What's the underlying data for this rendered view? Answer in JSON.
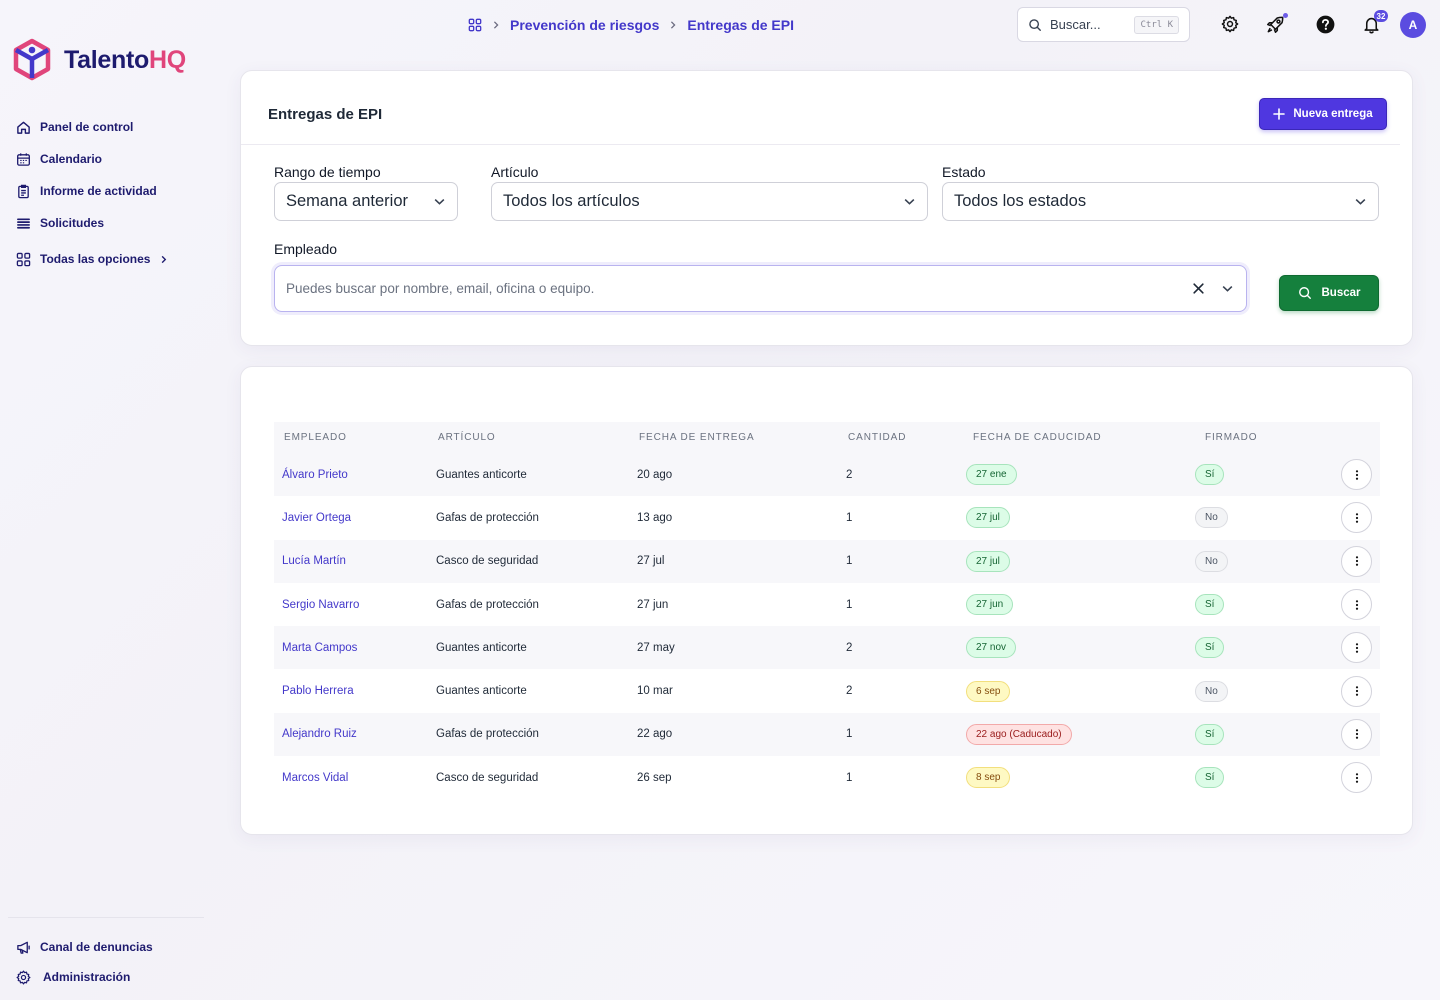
{
  "app": {
    "logo_main": "Talento",
    "logo_accent": "HQ"
  },
  "sidebar": {
    "items": [
      {
        "label": "Panel de control",
        "icon": "home-icon"
      },
      {
        "label": "Calendario",
        "icon": "calendar-icon"
      },
      {
        "label": "Informe de actividad",
        "icon": "report-icon"
      },
      {
        "label": "Solicitudes",
        "icon": "list-icon"
      }
    ],
    "all_options": "Todas las opciones",
    "bottom": [
      {
        "label": "Canal de denuncias",
        "icon": "megaphone-icon"
      },
      {
        "label": "Administración",
        "icon": "gear-icon"
      }
    ]
  },
  "topbar": {
    "breadcrumb": [
      "Prevención de riesgos",
      "Entregas de EPI"
    ],
    "search_placeholder": "Buscar...",
    "search_shortcut": "Ctrl K",
    "notifications_count": "32",
    "avatar_initial": "A"
  },
  "filters": {
    "title": "Entregas de EPI",
    "new_button": "Nueva entrega",
    "time_range": {
      "label": "Rango de tiempo",
      "value": "Semana anterior"
    },
    "article": {
      "label": "Artículo",
      "value": "Todos los artículos"
    },
    "status": {
      "label": "Estado",
      "value": "Todos los estados"
    },
    "employee": {
      "label": "Empleado",
      "placeholder": "Puedes buscar por nombre, email, oficina o equipo.",
      "value": ""
    },
    "search_button": "Buscar"
  },
  "table": {
    "headers": [
      "EMPLEADO",
      "ARTÍCULO",
      "FECHA DE ENTREGA",
      "CANTIDAD",
      "FECHA DE CADUCIDAD",
      "FIRMADO"
    ],
    "rows": [
      {
        "employee": "Álvaro Prieto",
        "article": "Guantes anticorte",
        "delivered": "20 ago",
        "qty": "2",
        "expiry": "27 ene",
        "expiry_status": "green",
        "signed": "Sí"
      },
      {
        "employee": "Javier Ortega",
        "article": "Gafas de protección",
        "delivered": "13 ago",
        "qty": "1",
        "expiry": "27 jul",
        "expiry_status": "green",
        "signed": "No"
      },
      {
        "employee": "Lucía Martín",
        "article": "Casco de seguridad",
        "delivered": "27 jul",
        "qty": "1",
        "expiry": "27 jul",
        "expiry_status": "green",
        "signed": "No"
      },
      {
        "employee": "Sergio Navarro",
        "article": "Gafas de protección",
        "delivered": "27 jun",
        "qty": "1",
        "expiry": "27 jun",
        "expiry_status": "green",
        "signed": "Sí"
      },
      {
        "employee": "Marta Campos",
        "article": "Guantes anticorte",
        "delivered": "27 may",
        "qty": "2",
        "expiry": "27 nov",
        "expiry_status": "green",
        "signed": "Sí"
      },
      {
        "employee": "Pablo Herrera",
        "article": "Guantes anticorte",
        "delivered": "10 mar",
        "qty": "2",
        "expiry": "6 sep",
        "expiry_status": "yellow",
        "signed": "No"
      },
      {
        "employee": "Alejandro Ruiz",
        "article": "Gafas de protección",
        "delivered": "22 ago",
        "qty": "1",
        "expiry": "22 ago (Caducado)",
        "expiry_status": "red",
        "signed": "Sí"
      },
      {
        "employee": "Marcos Vidal",
        "article": "Casco de seguridad",
        "delivered": "26 sep",
        "qty": "1",
        "expiry": "8 sep",
        "expiry_status": "yellow",
        "signed": "Sí"
      }
    ]
  },
  "colors": {
    "primary": "#4f37e0",
    "success_button": "#15803d",
    "link": "#4338ca",
    "brand_navy": "#1e1b6e",
    "brand_pink": "#e0457b"
  }
}
